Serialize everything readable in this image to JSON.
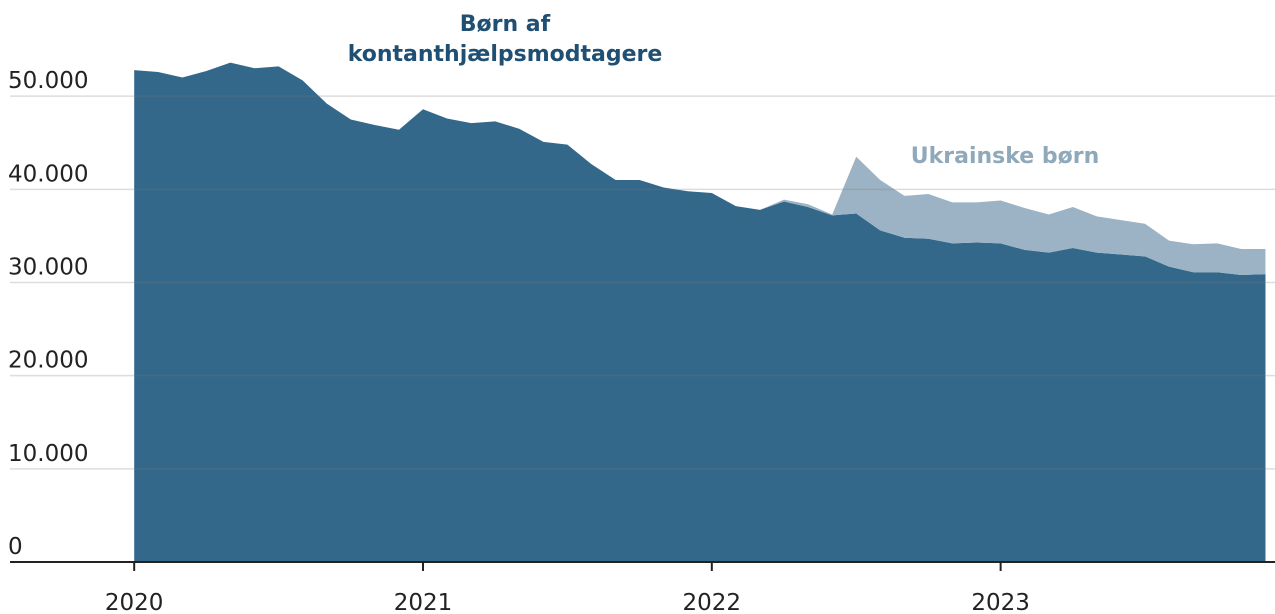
{
  "chart_data": {
    "type": "stacked_area",
    "x": [
      2020,
      2020.083,
      2020.167,
      2020.25,
      2020.333,
      2020.417,
      2020.5,
      2020.583,
      2020.667,
      2020.75,
      2020.833,
      2020.917,
      2021,
      2021.083,
      2021.167,
      2021.25,
      2021.333,
      2021.417,
      2021.5,
      2021.583,
      2021.667,
      2021.75,
      2021.833,
      2021.917,
      2022,
      2022.083,
      2022.167,
      2022.25,
      2022.333,
      2022.417,
      2022.5,
      2022.583,
      2022.667,
      2022.75,
      2022.833,
      2022.917,
      2023,
      2023.083,
      2023.167,
      2023.25,
      2023.333,
      2023.417,
      2023.5,
      2023.583,
      2023.667,
      2023.75,
      2023.833,
      2023.917
    ],
    "series": [
      {
        "name": "Børn af kontanthjælpsmodtagere",
        "color": "#34688a",
        "label_color": "#1f4f73",
        "values": [
          52800,
          52600,
          52000,
          52700,
          53600,
          53000,
          53200,
          51700,
          49200,
          47500,
          46900,
          46400,
          48600,
          47600,
          47100,
          47300,
          46500,
          45100,
          44800,
          42700,
          41000,
          41000,
          40200,
          39800,
          39600,
          38200,
          37800,
          38700,
          38100,
          37200,
          37400,
          35600,
          34800,
          34700,
          34200,
          34300,
          34200,
          33500,
          33200,
          33700,
          33200,
          33000,
          32800,
          31700,
          31100,
          31100,
          30800,
          30900
        ]
      },
      {
        "name": "Ukrainske børn",
        "color": "#9bb3c4",
        "label_color": "#8fa9bb",
        "values": [
          0,
          0,
          0,
          0,
          0,
          0,
          0,
          0,
          0,
          0,
          0,
          0,
          0,
          0,
          0,
          0,
          0,
          0,
          0,
          0,
          0,
          0,
          0,
          0,
          0,
          0,
          0,
          200,
          300,
          100,
          6100,
          5400,
          4500,
          4800,
          4400,
          4300,
          4600,
          4500,
          4100,
          4400,
          3900,
          3700,
          3500,
          2800,
          3000,
          3100,
          2800,
          2700
        ]
      }
    ],
    "xlim": [
      2019.57,
      2023.95
    ],
    "xticks": [
      2020,
      2021,
      2022,
      2023
    ],
    "ylim": [
      0,
      60000
    ],
    "yticks": [
      0,
      {
        "value": 10000,
        "label": "10.000"
      },
      {
        "value": 20000,
        "label": "20.000"
      },
      {
        "value": 30000,
        "label": "30.000"
      },
      {
        "value": 40000,
        "label": "40.000"
      },
      {
        "value": 50000,
        "label": "50.000"
      }
    ],
    "grid": true
  }
}
